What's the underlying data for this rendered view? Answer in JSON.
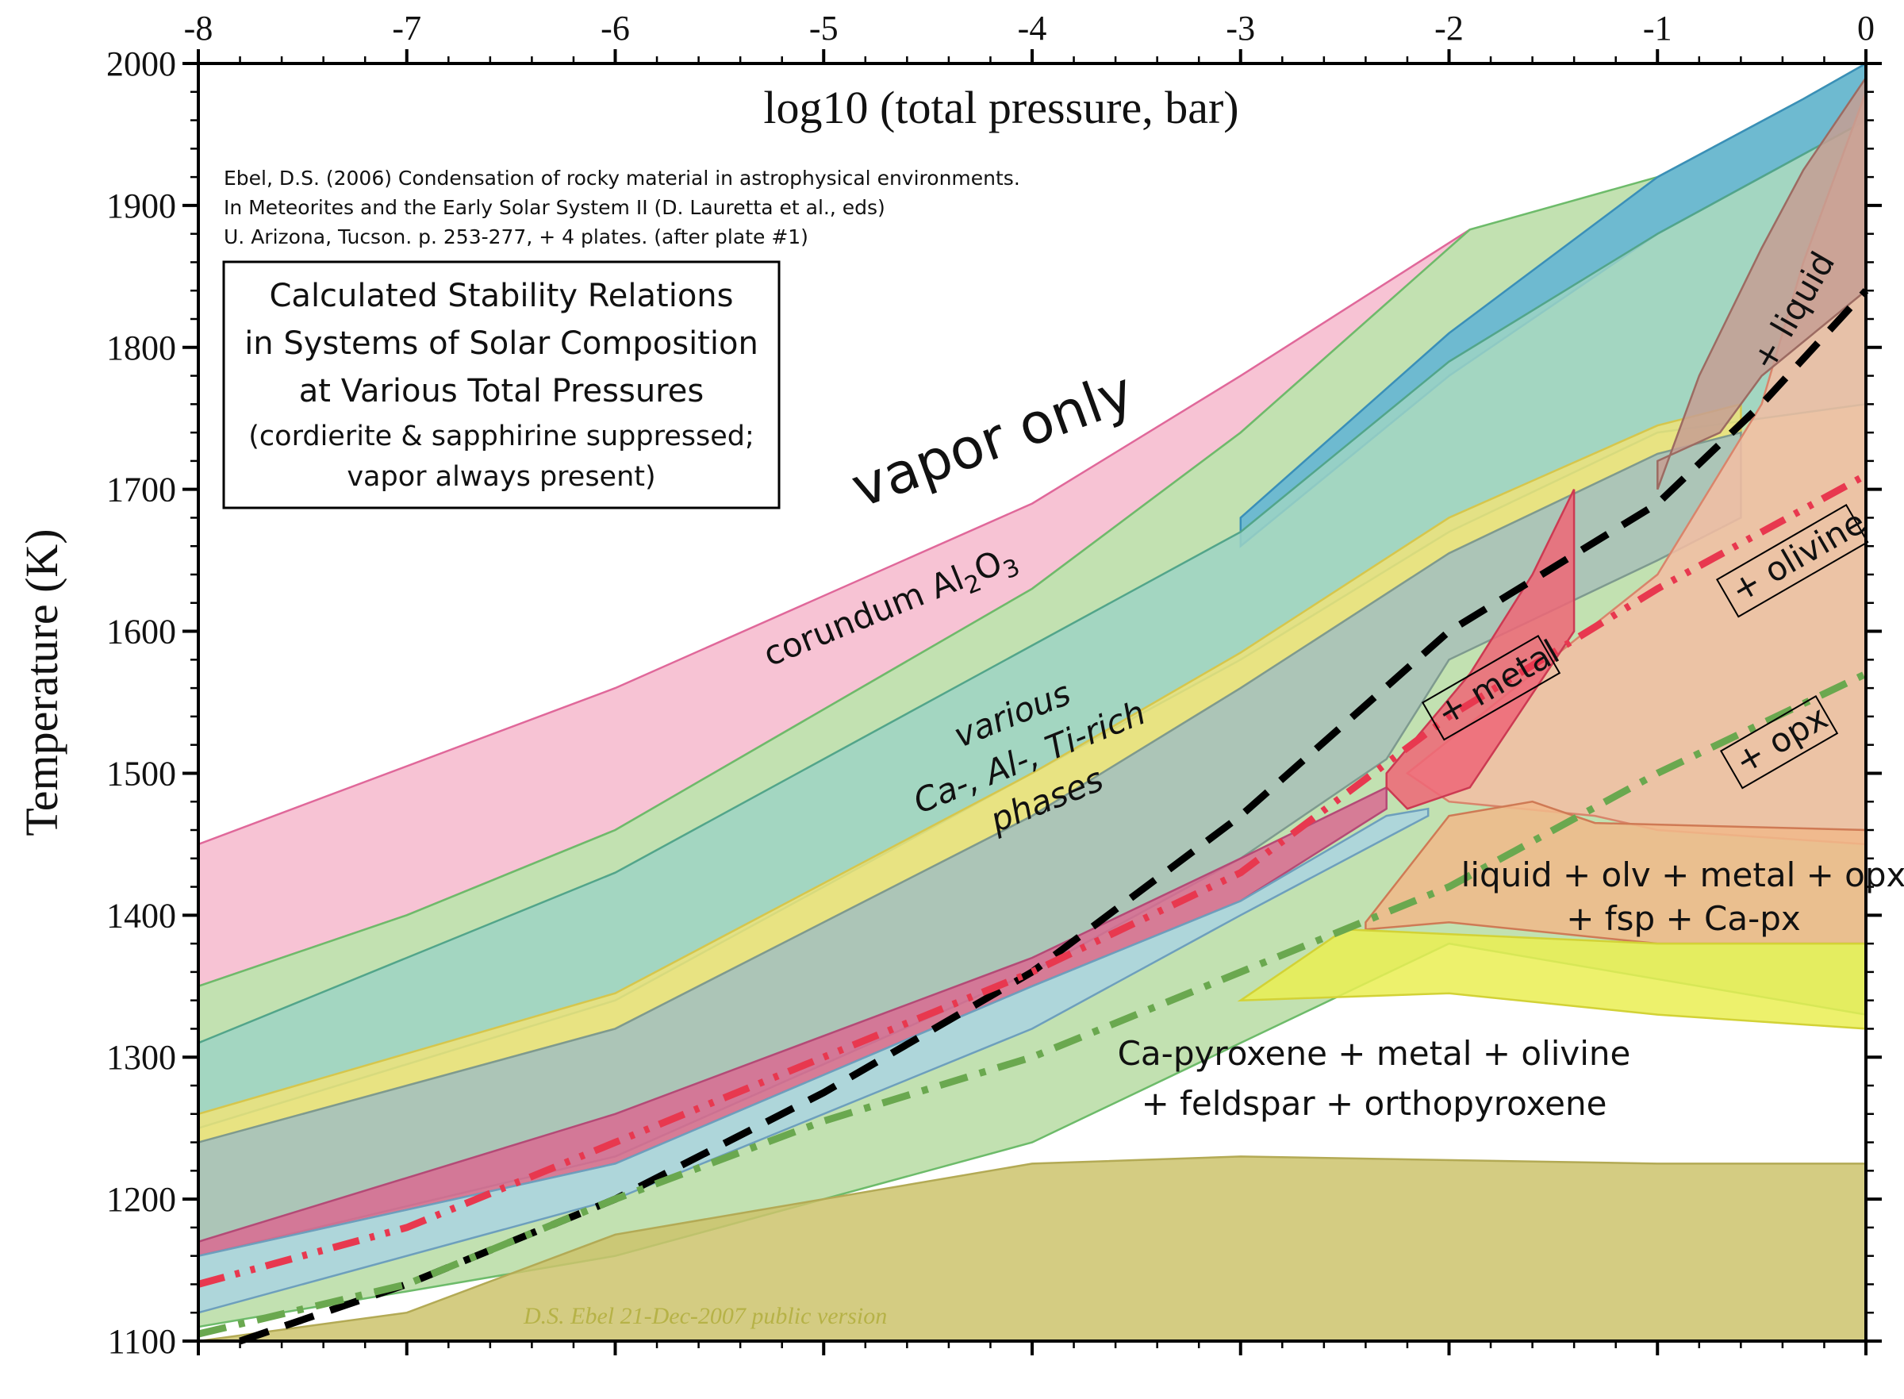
{
  "chart_data": {
    "type": "area",
    "title": "log10 (total pressure, bar)",
    "xlabel": "log10 (total pressure, bar)",
    "ylabel": "Temperature (K)",
    "xlim": [
      -8,
      0
    ],
    "ylim": [
      1100,
      2000
    ],
    "x_ticks": [
      "-8",
      "-7",
      "-6",
      "-5",
      "-4",
      "-3",
      "-2",
      "-1",
      "0"
    ],
    "y_ticks": [
      "1100",
      "1200",
      "1300",
      "1400",
      "1500",
      "1600",
      "1700",
      "1800",
      "1900",
      "2000"
    ],
    "citation": [
      "Ebel, D.S. (2006) Condensation of rocky material in astrophysical environments.",
      "In Meteorites and the Early Solar System II (D. Lauretta et al., eds)",
      "U. Arizona, Tucson. p. 253-277, + 4 plates. (after plate #1)"
    ],
    "box_title": [
      "Calculated Stability Relations",
      "in Systems of Solar Composition",
      "at Various Total Pressures",
      "(cordierite & sapphirine suppressed;",
      "vapor always present)"
    ],
    "annotations": {
      "vapor_only": "vapor only",
      "corundum": "corundum Al2O3",
      "various_1": "various",
      "various_2": "Ca-, Al-, Ti-rich",
      "various_3": "phases",
      "liquid": "+ liquid",
      "metal": "+ metal",
      "olivine": "+ olivine",
      "opx": "+ opx",
      "liquid_assemblage_1": "liquid + olv + metal + opx",
      "liquid_assemblage_2": "+ fsp + Ca-px",
      "capyroxene_1": "Ca-pyroxene + metal + olivine",
      "capyroxene_2": "+ feldspar + orthopyroxene",
      "watermark": "D.S. Ebel  21-Dec-2007  public version"
    },
    "regions": [
      {
        "name": "corundum",
        "color": "#f6b8cc",
        "stroke": "#e0689a",
        "upper": [
          [
            -8,
            1450
          ],
          [
            -6,
            1560
          ],
          [
            -4,
            1690
          ],
          [
            -3,
            1780
          ],
          [
            -1.9,
            1883
          ]
        ],
        "lower": [
          [
            -1.9,
            1883
          ],
          [
            -3,
            1740
          ],
          [
            -4,
            1630
          ],
          [
            -6,
            1460
          ],
          [
            -7,
            1400
          ],
          [
            -8,
            1350
          ]
        ]
      },
      {
        "name": "green-outer",
        "color": "#b7dca3",
        "stroke": "#6dbb6a",
        "upper": [
          [
            -8,
            1350
          ],
          [
            -7,
            1400
          ],
          [
            -6,
            1460
          ],
          [
            -4,
            1630
          ],
          [
            -3,
            1740
          ],
          [
            -1.9,
            1883
          ],
          [
            -1,
            1920
          ],
          [
            -0.3,
            1975
          ],
          [
            0,
            2000
          ]
        ],
        "lower": [
          [
            0,
            1330
          ],
          [
            -2,
            1380
          ],
          [
            -4,
            1240
          ],
          [
            -6,
            1160
          ],
          [
            -8,
            1110
          ]
        ]
      },
      {
        "name": "blue-high",
        "color": "#5fb3d6",
        "stroke": "#3a8fb8",
        "upper": [
          [
            -3,
            1680
          ],
          [
            -2,
            1810
          ],
          [
            -1,
            1920
          ],
          [
            -0.3,
            1975
          ],
          [
            0,
            2000
          ]
        ],
        "lower": [
          [
            0,
            1960
          ],
          [
            -0.5,
            1920
          ],
          [
            -1,
            1880
          ],
          [
            -2,
            1780
          ],
          [
            -3,
            1660
          ]
        ]
      },
      {
        "name": "teal-1",
        "color": "#9dd4c4",
        "stroke": "#52a58a",
        "upper": [
          [
            -8,
            1310
          ],
          [
            -6,
            1430
          ],
          [
            -4,
            1590
          ],
          [
            -3,
            1670
          ],
          [
            -2,
            1790
          ],
          [
            -1,
            1880
          ],
          [
            -0.5,
            1920
          ],
          [
            0,
            1960
          ]
        ],
        "lower": [
          [
            0,
            1760
          ],
          [
            -1,
            1740
          ],
          [
            -2,
            1670
          ],
          [
            -3,
            1580
          ],
          [
            -4,
            1500
          ],
          [
            -6,
            1340
          ],
          [
            -8,
            1250
          ]
        ]
      },
      {
        "name": "yellow-band",
        "color": "#eee37a",
        "stroke": "#d6c64c",
        "upper": [
          [
            -8,
            1260
          ],
          [
            -6,
            1345
          ],
          [
            -4,
            1500
          ],
          [
            -3,
            1585
          ],
          [
            -2,
            1680
          ],
          [
            -1,
            1745
          ],
          [
            -0.6,
            1760
          ]
        ],
        "lower": [
          [
            -0.6,
            1740
          ],
          [
            -1,
            1725
          ],
          [
            -2,
            1655
          ],
          [
            -3,
            1560
          ],
          [
            -4,
            1470
          ],
          [
            -6,
            1320
          ],
          [
            -8,
            1240
          ]
        ]
      },
      {
        "name": "gray-teal",
        "color": "#a8bfb8",
        "stroke": "#7e9a8f",
        "upper": [
          [
            -8,
            1240
          ],
          [
            -6,
            1320
          ],
          [
            -4,
            1470
          ],
          [
            -3,
            1560
          ],
          [
            -2,
            1655
          ],
          [
            -1,
            1725
          ],
          [
            -0.6,
            1740
          ]
        ],
        "lower": [
          [
            -0.6,
            1680
          ],
          [
            -1,
            1650
          ],
          [
            -2,
            1580
          ],
          [
            -2.3,
            1510
          ],
          [
            -3,
            1440
          ],
          [
            -4,
            1360
          ],
          [
            -6,
            1230
          ],
          [
            -8,
            1160
          ]
        ]
      },
      {
        "name": "magenta-low",
        "color": "#d96a92",
        "stroke": "#b44a76",
        "upper": [
          [
            -8,
            1170
          ],
          [
            -6,
            1260
          ],
          [
            -4,
            1370
          ],
          [
            -3,
            1440
          ],
          [
            -2.3,
            1490
          ],
          [
            -2.3,
            1475
          ]
        ],
        "lower": [
          [
            -2.3,
            1475
          ],
          [
            -3,
            1410
          ],
          [
            -4,
            1350
          ],
          [
            -6,
            1225
          ],
          [
            -8,
            1160
          ]
        ]
      },
      {
        "name": "lightblue-low",
        "color": "#aad3e2",
        "stroke": "#6d9fbd",
        "upper": [
          [
            -8,
            1160
          ],
          [
            -6,
            1225
          ],
          [
            -4,
            1350
          ],
          [
            -3,
            1410
          ],
          [
            -2.3,
            1470
          ],
          [
            -2.1,
            1475
          ]
        ],
        "lower": [
          [
            -2.1,
            1470
          ],
          [
            -3,
            1400
          ],
          [
            -4,
            1320
          ],
          [
            -6,
            1200
          ],
          [
            -8,
            1120
          ]
        ]
      },
      {
        "name": "peach-right",
        "color": "#f3bda3",
        "stroke": "#d9846b",
        "upper": [
          [
            -2.2,
            1500
          ],
          [
            -1,
            1640
          ],
          [
            -0.5,
            1760
          ],
          [
            -0.3,
            1860
          ],
          [
            0,
            1980
          ]
        ],
        "lower": [
          [
            0,
            1450
          ],
          [
            -1,
            1460
          ],
          [
            -1.3,
            1470
          ],
          [
            -2,
            1480
          ]
        ]
      },
      {
        "name": "liquid-wedge",
        "color": "#c59e93",
        "stroke": "#9c6b62",
        "upper": [
          [
            -1,
            1700
          ],
          [
            -0.8,
            1780
          ],
          [
            -0.5,
            1870
          ],
          [
            -0.3,
            1925
          ],
          [
            0,
            1990
          ]
        ],
        "lower": [
          [
            0,
            1840
          ],
          [
            -0.5,
            1780
          ],
          [
            -0.7,
            1740
          ],
          [
            -1,
            1720
          ]
        ]
      },
      {
        "name": "red-metal",
        "color": "#ee6677",
        "stroke": "#cc3a52",
        "upper": [
          [
            -2.3,
            1500
          ],
          [
            -1.9,
            1570
          ],
          [
            -1.6,
            1640
          ],
          [
            -1.4,
            1700
          ]
        ],
        "lower": [
          [
            -1.4,
            1600
          ],
          [
            -1.9,
            1490
          ],
          [
            -2.2,
            1475
          ],
          [
            -2.3,
            1490
          ]
        ]
      },
      {
        "name": "orange-liquid",
        "color": "#f1b98a",
        "stroke": "#cf7a55",
        "upper": [
          [
            -2.4,
            1395
          ],
          [
            -2,
            1470
          ],
          [
            -1.6,
            1480
          ],
          [
            -1.3,
            1465
          ],
          [
            0,
            1460
          ]
        ],
        "lower": [
          [
            0,
            1380
          ],
          [
            -1,
            1380
          ],
          [
            -2,
            1395
          ],
          [
            -2.4,
            1390
          ]
        ]
      },
      {
        "name": "yellow-bright",
        "color": "#eaef52",
        "stroke": "#d2d236",
        "upper": [
          [
            -3,
            1340
          ],
          [
            -2.5,
            1390
          ],
          [
            -1,
            1380
          ],
          [
            0,
            1380
          ]
        ],
        "lower": [
          [
            0,
            1320
          ],
          [
            -1,
            1330
          ],
          [
            -2,
            1345
          ],
          [
            -3,
            1340
          ]
        ]
      },
      {
        "name": "khaki-low",
        "color": "#cdc36c",
        "stroke": "#b3aa55",
        "upper": [
          [
            -7,
            1120
          ],
          [
            -6,
            1175
          ],
          [
            -4,
            1225
          ],
          [
            -3,
            1230
          ],
          [
            -1,
            1225
          ],
          [
            0,
            1225
          ]
        ],
        "lower": [
          [
            0,
            1100
          ],
          [
            -8,
            1100
          ]
        ]
      }
    ],
    "series": [
      {
        "name": "",
        "style": "dash",
        "color": "#000000",
        "points": [
          [
            -7.8,
            1100
          ],
          [
            -7,
            1140
          ],
          [
            -6,
            1200
          ],
          [
            -5,
            1275
          ],
          [
            -4,
            1360
          ],
          [
            -3,
            1470
          ],
          [
            -2,
            1600
          ],
          [
            -1,
            1690
          ],
          [
            -0.5,
            1760
          ],
          [
            0,
            1840
          ]
        ]
      },
      {
        "name": "",
        "style": "dash-dot-dot",
        "color": "#e8384f",
        "points": [
          [
            -8,
            1140
          ],
          [
            -7,
            1180
          ],
          [
            -6,
            1240
          ],
          [
            -5,
            1300
          ],
          [
            -4,
            1360
          ],
          [
            -3,
            1430
          ],
          [
            -2,
            1540
          ],
          [
            -1,
            1630
          ],
          [
            0,
            1710
          ]
        ]
      },
      {
        "name": "",
        "style": "dash-dot",
        "color": "#6aa84f",
        "points": [
          [
            -8,
            1105
          ],
          [
            -7,
            1140
          ],
          [
            -6,
            1200
          ],
          [
            -5,
            1255
          ],
          [
            -4,
            1300
          ],
          [
            -3,
            1360
          ],
          [
            -2,
            1420
          ],
          [
            -1,
            1500
          ],
          [
            0,
            1570
          ]
        ]
      }
    ]
  }
}
